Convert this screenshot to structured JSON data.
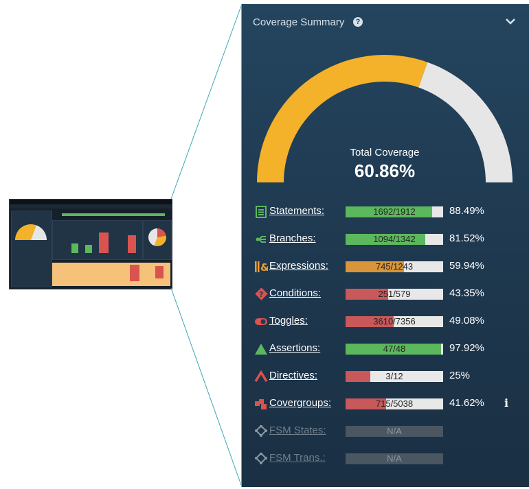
{
  "panel": {
    "title": "Coverage Summary",
    "help_glyph": "?",
    "total_label": "Total Coverage",
    "total_value": "60.86%",
    "total_fraction": 0.6086,
    "gauge_colors": {
      "filled": "#f4b12a",
      "empty": "#e6e6e6"
    }
  },
  "metrics": [
    {
      "label": "Statements:",
      "value": "1692/1912",
      "pct": "88.49%",
      "fraction": 0.8849,
      "color": "#5cb85c",
      "icon": "statements-icon",
      "icon_color": "#5cb85c"
    },
    {
      "label": "Branches:",
      "value": "1094/1342",
      "pct": "81.52%",
      "fraction": 0.8152,
      "color": "#5cb85c",
      "icon": "branches-icon",
      "icon_color": "#5cb85c"
    },
    {
      "label": "Expressions:",
      "value": "745/1243",
      "pct": "59.94%",
      "fraction": 0.5994,
      "color": "#d8953a",
      "icon": "expressions-icon",
      "icon_color": "#f0a030"
    },
    {
      "label": "Conditions:",
      "value": "251/579",
      "pct": "43.35%",
      "fraction": 0.4335,
      "color": "#c9585a",
      "icon": "conditions-icon",
      "icon_color": "#d9534f"
    },
    {
      "label": "Toggles:",
      "value": "3610/7356",
      "pct": "49.08%",
      "fraction": 0.4908,
      "color": "#c9585a",
      "icon": "toggles-icon",
      "icon_color": "#d9534f"
    },
    {
      "label": "Assertions:",
      "value": "47/48",
      "pct": "97.92%",
      "fraction": 0.9792,
      "color": "#5cb85c",
      "icon": "assertions-icon",
      "icon_color": "#5cb85c"
    },
    {
      "label": "Directives:",
      "value": "3/12",
      "pct": "25%",
      "fraction": 0.25,
      "color": "#c9585a",
      "icon": "directives-icon",
      "icon_color": "#d9534f"
    },
    {
      "label": "Covergroups:",
      "value": "715/5038",
      "pct": "41.62%",
      "fraction": 0.4162,
      "color": "#c9585a",
      "icon": "covergroups-icon",
      "icon_color": "#d9534f",
      "info": "i"
    },
    {
      "label": "FSM States:",
      "value": "N/A",
      "pct": "",
      "fraction": 0,
      "color": "#4a5661",
      "icon": "fsm-states-icon",
      "icon_color": "#8a99a6",
      "disabled": true
    },
    {
      "label": "FSM Trans.:",
      "value": "N/A",
      "pct": "",
      "fraction": 0,
      "color": "#4a5661",
      "icon": "fsm-trans-icon",
      "icon_color": "#8a99a6",
      "disabled": true
    }
  ]
}
